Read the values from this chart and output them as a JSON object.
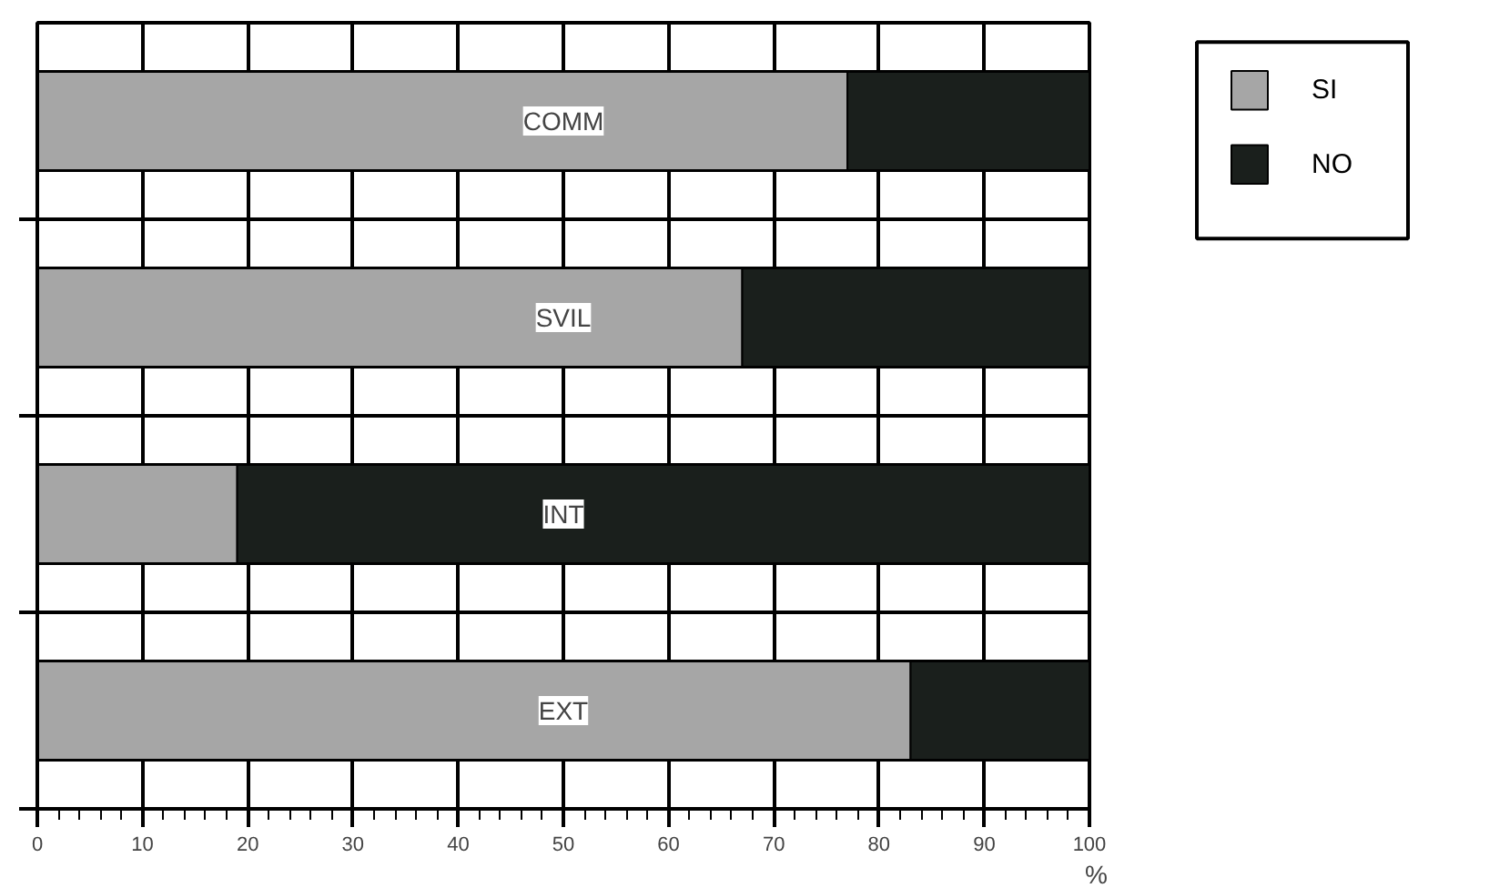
{
  "chart_data": {
    "type": "bar",
    "orientation": "horizontal",
    "stacked": true,
    "xlabel": "%",
    "categories": [
      "COMM",
      "SVIL",
      "INT",
      "EXT"
    ],
    "series": [
      {
        "name": "SI",
        "color": "#a6a6a6",
        "values": [
          77,
          67,
          19,
          83
        ]
      },
      {
        "name": "NO",
        "color": "#1a1f1c",
        "values": [
          23,
          33,
          81,
          17
        ]
      }
    ],
    "xlim": [
      0,
      100
    ],
    "xticks": [
      0,
      10,
      20,
      30,
      40,
      50,
      60,
      70,
      80,
      90,
      100
    ],
    "grid": true,
    "legend": "top right"
  }
}
